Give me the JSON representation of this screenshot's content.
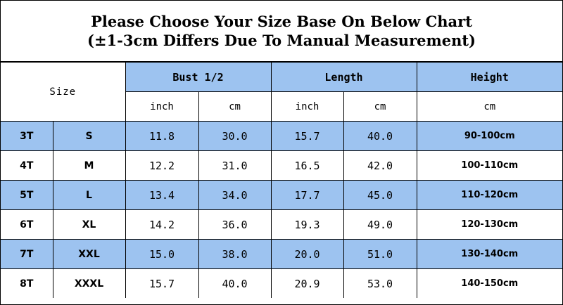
{
  "title": {
    "line1": "Please Choose Your Size Base On Below Chart",
    "line2": "(±1-3cm Differs Due To Manual Measurement)"
  },
  "header": {
    "size": "Size",
    "bust": "Bust 1/2",
    "length": "Length",
    "height": "Height",
    "units": [
      "inch",
      "cm",
      "inch",
      "cm",
      "cm"
    ]
  },
  "rows": [
    {
      "age": "3T",
      "size": "S",
      "bust_in": "11.8",
      "bust_cm": "30.0",
      "len_in": "15.7",
      "len_cm": "40.0",
      "height": "90-100cm"
    },
    {
      "age": "4T",
      "size": "M",
      "bust_in": "12.2",
      "bust_cm": "31.0",
      "len_in": "16.5",
      "len_cm": "42.0",
      "height": "100-110cm"
    },
    {
      "age": "5T",
      "size": "L",
      "bust_in": "13.4",
      "bust_cm": "34.0",
      "len_in": "17.7",
      "len_cm": "45.0",
      "height": "110-120cm"
    },
    {
      "age": "6T",
      "size": "XL",
      "bust_in": "14.2",
      "bust_cm": "36.0",
      "len_in": "19.3",
      "len_cm": "49.0",
      "height": "120-130cm"
    },
    {
      "age": "7T",
      "size": "XXL",
      "bust_in": "15.0",
      "bust_cm": "38.0",
      "len_in": "20.0",
      "len_cm": "51.0",
      "height": "130-140cm"
    },
    {
      "age": "8T",
      "size": "XXXL",
      "bust_in": "15.7",
      "bust_cm": "40.0",
      "len_in": "20.9",
      "len_cm": "53.0",
      "height": "140-150cm"
    }
  ],
  "colors": {
    "accent": "#9dc3f0"
  }
}
